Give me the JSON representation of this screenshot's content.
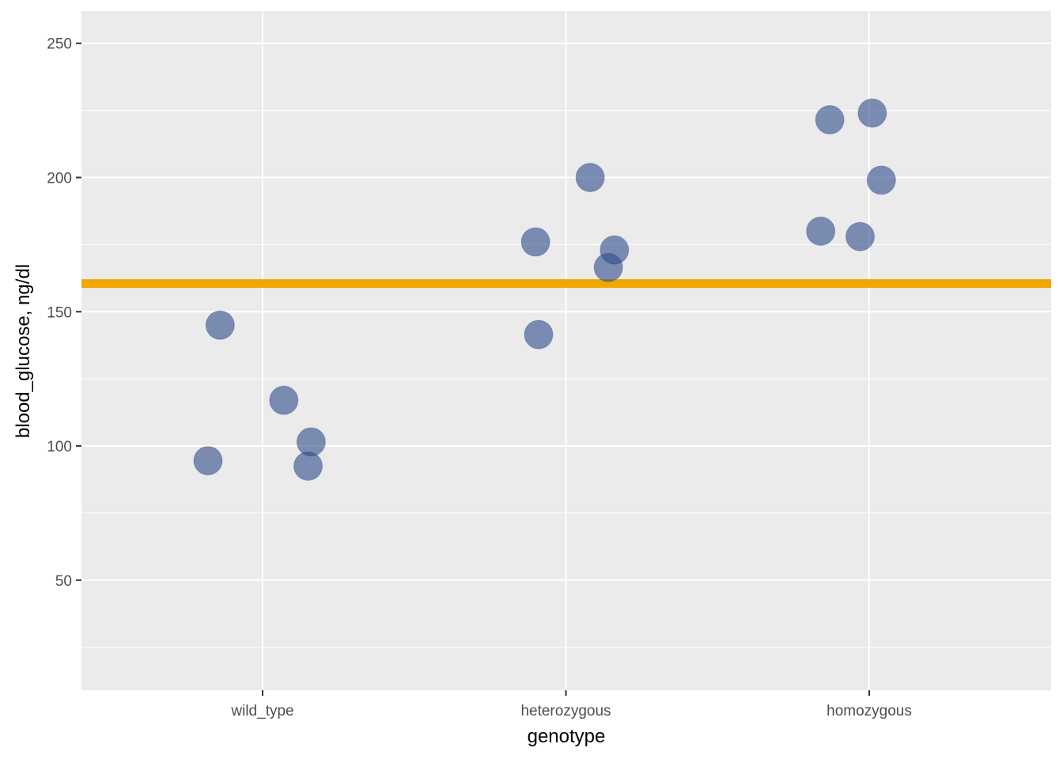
{
  "chart_data": {
    "type": "scatter",
    "title": "",
    "xlabel": "genotype",
    "ylabel": "blood_glucose, ng/dl",
    "categories": [
      "wild_type",
      "heterozygous",
      "homozygous"
    ],
    "ylim": [
      9,
      262
    ],
    "y_ticks": [
      50,
      100,
      150,
      200,
      250
    ],
    "grid": true,
    "reference_line": {
      "y": 160.5,
      "color": "#F0A800"
    },
    "point_color": "#2F4B8A",
    "points": [
      {
        "category": "wild_type",
        "jitter": -0.18,
        "y": 94.5
      },
      {
        "category": "wild_type",
        "jitter": -0.14,
        "y": 145.0
      },
      {
        "category": "wild_type",
        "jitter": 0.07,
        "y": 117.0
      },
      {
        "category": "wild_type",
        "jitter": 0.16,
        "y": 101.5
      },
      {
        "category": "wild_type",
        "jitter": 0.15,
        "y": 92.5
      },
      {
        "category": "heterozygous",
        "jitter": -0.1,
        "y": 176.0
      },
      {
        "category": "heterozygous",
        "jitter": -0.09,
        "y": 141.5
      },
      {
        "category": "heterozygous",
        "jitter": 0.08,
        "y": 200.0
      },
      {
        "category": "heterozygous",
        "jitter": 0.16,
        "y": 173.0
      },
      {
        "category": "heterozygous",
        "jitter": 0.14,
        "y": 166.5
      },
      {
        "category": "homozygous",
        "jitter": -0.13,
        "y": 221.5
      },
      {
        "category": "homozygous",
        "jitter": 0.01,
        "y": 224.0
      },
      {
        "category": "homozygous",
        "jitter": 0.04,
        "y": 199.0
      },
      {
        "category": "homozygous",
        "jitter": -0.16,
        "y": 180.0
      },
      {
        "category": "homozygous",
        "jitter": -0.03,
        "y": 178.0
      }
    ]
  }
}
